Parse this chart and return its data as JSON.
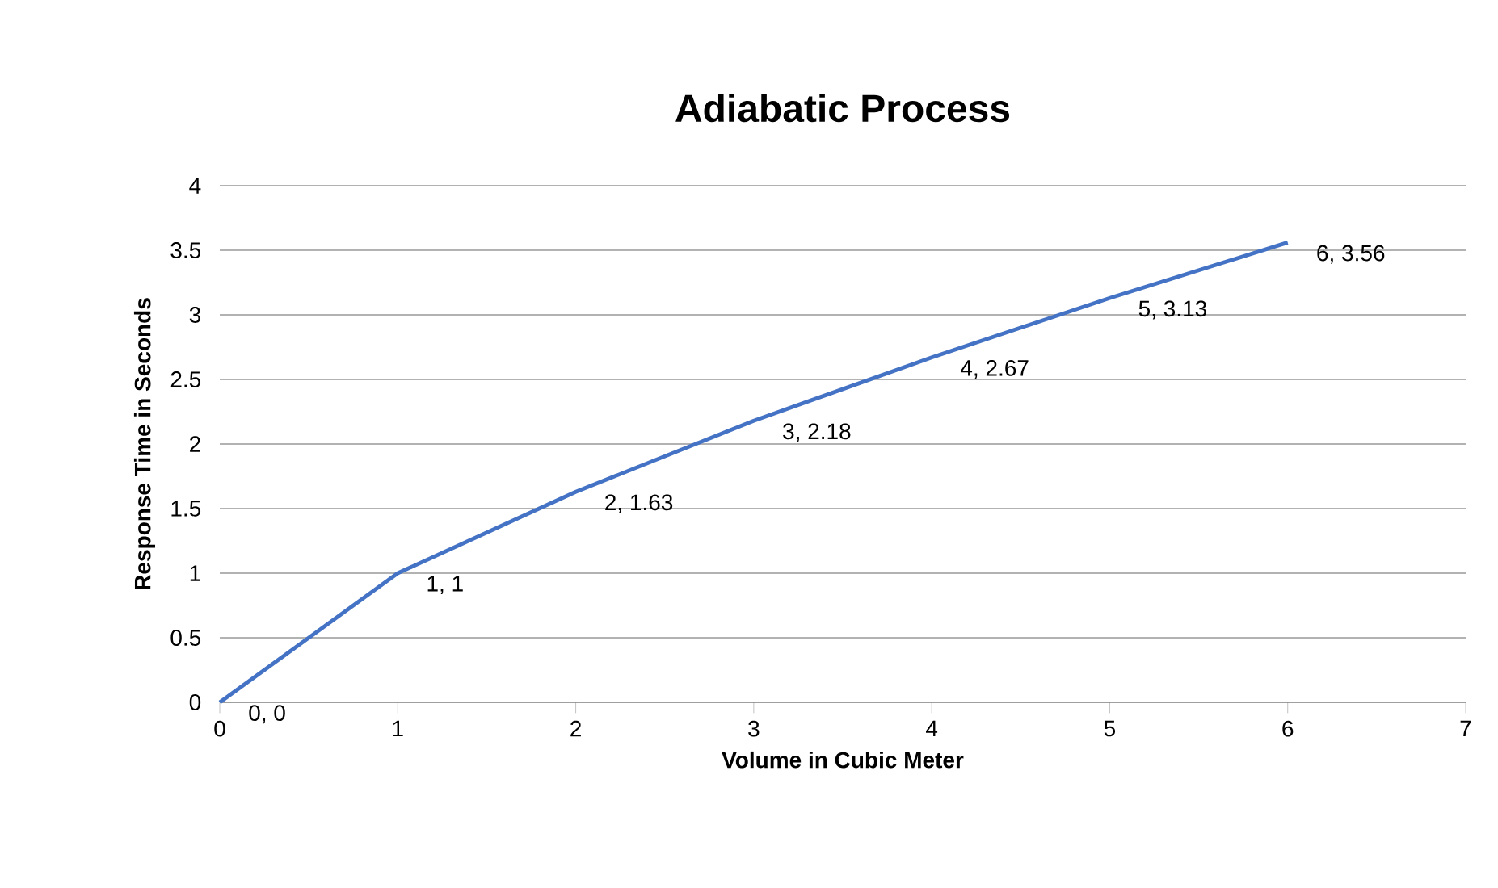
{
  "chart_data": {
    "type": "line",
    "title": "Adiabatic Process",
    "xlabel": "Volume in Cubic Meter",
    "ylabel": "Response Time in Seconds",
    "x": [
      0,
      1,
      2,
      3,
      4,
      5,
      6
    ],
    "series": [
      {
        "color": "#4472c4",
        "values": [
          0,
          1,
          1.63,
          2.18,
          2.67,
          3.13,
          3.56
        ],
        "value_labels": [
          "0, 0",
          "1, 1",
          "2, 1.63",
          "3, 2.18",
          "4, 2.67",
          "5, 3.13",
          "6, 3.56"
        ]
      }
    ],
    "xlim": [
      0,
      7
    ],
    "xticks": [
      0,
      1,
      2,
      3,
      4,
      5,
      6,
      7
    ],
    "ylim": [
      0,
      4
    ],
    "yticks": [
      0,
      0.5,
      1,
      1.5,
      2,
      2.5,
      3,
      3.5,
      4
    ],
    "grid": "y",
    "marker": "none",
    "line_style": "solid"
  }
}
